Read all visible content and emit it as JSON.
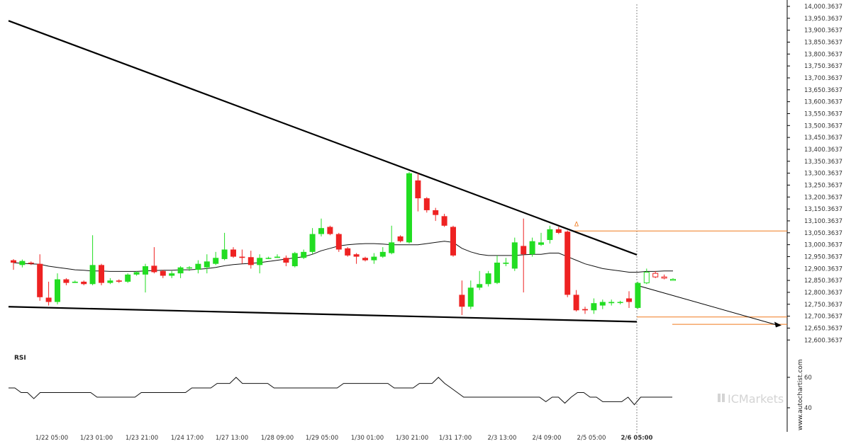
{
  "chart_data": [
    {
      "type": "candlestick",
      "title": "",
      "y_tick_labels": [
        "14,000.3637",
        "13,950.3637",
        "13,900.3637",
        "13,850.3637",
        "13,800.3637",
        "13,750.3637",
        "13,700.3637",
        "13,650.3637",
        "13,600.3637",
        "13,550.3637",
        "13,500.3637",
        "13,450.3637",
        "13,400.3637",
        "13,350.3637",
        "13,300.3637",
        "13,250.3637",
        "13,200.3637",
        "13,150.3637",
        "13,100.3637",
        "13,050.3637",
        "13,000.3637",
        "12,950.3637",
        "12,900.3637",
        "12,850.3637",
        "12,800.3637",
        "12,750.3637",
        "12,700.3637",
        "12,650.3637",
        "12,600.3637"
      ],
      "x_tick_labels": [
        "1/22 05:00",
        "1/23 01:00",
        "1/23 21:00",
        "1/24 17:00",
        "1/27 13:00",
        "1/28 09:00",
        "1/29 05:00",
        "1/30 01:00",
        "1/30 21:00",
        "1/31 17:00",
        "2/3 13:00",
        "2/4 09:00",
        "2/5 05:00",
        "2/6 05:00"
      ],
      "ylim": [
        12580.3637,
        14000.3637
      ],
      "up_color": "#22dd22",
      "down_color": "#ee2222",
      "candles": [
        [
          12935,
          12925,
          12940,
          12895
        ],
        [
          12915,
          12932,
          12938,
          12905
        ],
        [
          12925,
          12922,
          12930,
          12915
        ],
        [
          12920,
          12780,
          12960,
          12765
        ],
        [
          12778,
          12760,
          12845,
          12745
        ],
        [
          12760,
          12855,
          12880,
          12750
        ],
        [
          12855,
          12840,
          12860,
          12830
        ],
        [
          12840,
          12845,
          12850,
          12840
        ],
        [
          12845,
          12835,
          12850,
          12830
        ],
        [
          12835,
          12915,
          13040,
          12830
        ],
        [
          12915,
          12840,
          12920,
          12830
        ],
        [
          12840,
          12850,
          12860,
          12835
        ],
        [
          12850,
          12845,
          12855,
          12840
        ],
        [
          12845,
          12875,
          12880,
          12840
        ],
        [
          12875,
          12885,
          12890,
          12870
        ],
        [
          12875,
          12910,
          12920,
          12800
        ],
        [
          12912,
          12885,
          12990,
          12880
        ],
        [
          12890,
          12870,
          12895,
          12860
        ],
        [
          12870,
          12880,
          12890,
          12860
        ],
        [
          12880,
          12905,
          12910,
          12860
        ],
        [
          12905,
          12905,
          12910,
          12890
        ],
        [
          12895,
          12920,
          12935,
          12880
        ],
        [
          12905,
          12930,
          12960,
          12880
        ],
        [
          12920,
          12945,
          12970,
          12915
        ],
        [
          12940,
          12980,
          13050,
          12935
        ],
        [
          12980,
          12950,
          12990,
          12945
        ],
        [
          12950,
          12945,
          12980,
          12920
        ],
        [
          12948,
          12915,
          12975,
          12900
        ],
        [
          12915,
          12945,
          12960,
          12880
        ],
        [
          12945,
          12945,
          12950,
          12940
        ],
        [
          12945,
          12950,
          12960,
          12945
        ],
        [
          12945,
          12925,
          12955,
          12910
        ],
        [
          12910,
          12965,
          12970,
          12905
        ],
        [
          12945,
          12970,
          12980,
          12940
        ],
        [
          12970,
          13045,
          13070,
          12960
        ],
        [
          13045,
          13070,
          13110,
          13035
        ],
        [
          13075,
          13045,
          13080,
          13040
        ],
        [
          13045,
          12980,
          13050,
          12970
        ],
        [
          12985,
          12955,
          12990,
          12950
        ],
        [
          12960,
          12950,
          12965,
          12920
        ],
        [
          12945,
          12935,
          12950,
          12930
        ],
        [
          12935,
          12950,
          12965,
          12920
        ],
        [
          12950,
          12970,
          12990,
          12945
        ],
        [
          12965,
          13010,
          13080,
          12960
        ],
        [
          13035,
          13015,
          13040,
          13010
        ],
        [
          13010,
          13300,
          13305,
          13005
        ],
        [
          13270,
          13195,
          13300,
          13140
        ],
        [
          13195,
          13145,
          13200,
          13135
        ],
        [
          13145,
          13125,
          13155,
          13100
        ],
        [
          13120,
          13080,
          13130,
          13075
        ],
        [
          13075,
          12955,
          13080,
          12950
        ],
        [
          12790,
          12740,
          12850,
          12705
        ],
        [
          12740,
          12820,
          12850,
          12730
        ],
        [
          12820,
          12835,
          12890,
          12810
        ],
        [
          12835,
          12880,
          12890,
          12825
        ],
        [
          12840,
          12925,
          12955,
          12835
        ],
        [
          12920,
          12925,
          12945,
          12910
        ],
        [
          12900,
          13010,
          13030,
          12890
        ],
        [
          12995,
          12960,
          13110,
          12800
        ],
        [
          12960,
          13015,
          13030,
          12950
        ],
        [
          13000,
          13010,
          13050,
          12995
        ],
        [
          13020,
          13065,
          13080,
          13005
        ],
        [
          13065,
          13050,
          13075,
          13045
        ],
        [
          13055,
          12790,
          13060,
          12780
        ],
        [
          12790,
          12725,
          12810,
          12720
        ],
        [
          12730,
          12725,
          12740,
          12710
        ],
        [
          12725,
          12755,
          12775,
          12710
        ],
        [
          12745,
          12760,
          12770,
          12730
        ],
        [
          12755,
          12760,
          12770,
          12745
        ],
        [
          12760,
          12760,
          12765,
          12750
        ],
        [
          12775,
          12760,
          12805,
          12735
        ],
        [
          12735,
          12840,
          12845,
          12730
        ],
        [
          12840,
          12885,
          12900,
          12835
        ],
        [
          12880,
          12865,
          12890,
          12860
        ],
        [
          12865,
          12860,
          12875,
          12855
        ],
        [
          12855,
          12855,
          12860,
          12850
        ]
      ],
      "moving_average": [
        12925,
        12922,
        12920,
        12918,
        12910,
        12905,
        12900,
        12895,
        12893,
        12890,
        12890,
        12888,
        12888,
        12888,
        12888,
        12890,
        12892,
        12893,
        12893,
        12895,
        12895,
        12897,
        12900,
        12905,
        12912,
        12917,
        12920,
        12922,
        12925,
        12930,
        12935,
        12940,
        12945,
        12950,
        12960,
        12975,
        12985,
        12995,
        13000,
        13003,
        13005,
        13005,
        13003,
        13000,
        13000,
        13000,
        13000,
        13005,
        13010,
        13015,
        13010,
        12985,
        12970,
        12960,
        12955,
        12955,
        12955,
        12955,
        12958,
        12960,
        12960,
        12965,
        12965,
        12950,
        12935,
        12920,
        12910,
        12900,
        12895,
        12890,
        12885,
        12885,
        12888,
        12888,
        12890,
        12890
      ],
      "support_line": [
        12740,
        12677
      ],
      "resistance_line": [
        13940,
        12958
      ],
      "horizontal_levels": [
        13058,
        12697,
        12666
      ],
      "projection": [
        12830,
        12662
      ],
      "alert_marker": "Δ",
      "rsi": {
        "label": "RSI",
        "y_tick_labels": [
          "60",
          "40"
        ],
        "values": [
          53,
          53,
          50,
          50,
          46,
          50,
          50,
          50,
          50,
          50,
          50,
          50,
          50,
          50,
          47,
          47,
          47,
          47,
          47,
          47,
          47,
          50,
          50,
          50,
          50,
          50,
          50,
          50,
          50,
          53,
          53,
          53,
          53,
          56,
          56,
          56,
          60,
          56,
          56,
          56,
          56,
          56,
          53,
          53,
          53,
          53,
          53,
          53,
          53,
          53,
          53,
          53,
          53,
          56,
          56,
          56,
          56,
          56,
          56,
          56,
          56,
          53,
          53,
          53,
          53,
          56,
          56,
          56,
          60,
          56,
          53,
          50,
          47,
          47,
          47,
          47,
          47,
          47,
          47,
          47,
          47,
          47,
          47,
          47,
          47,
          44,
          47,
          47,
          43,
          47,
          50,
          50,
          47,
          47,
          44,
          44,
          44,
          44,
          47,
          42,
          47,
          47,
          47,
          47,
          47,
          47
        ]
      }
    }
  ],
  "branding": {
    "logo": "ICMarkets",
    "site": "www.autochartist.com"
  }
}
